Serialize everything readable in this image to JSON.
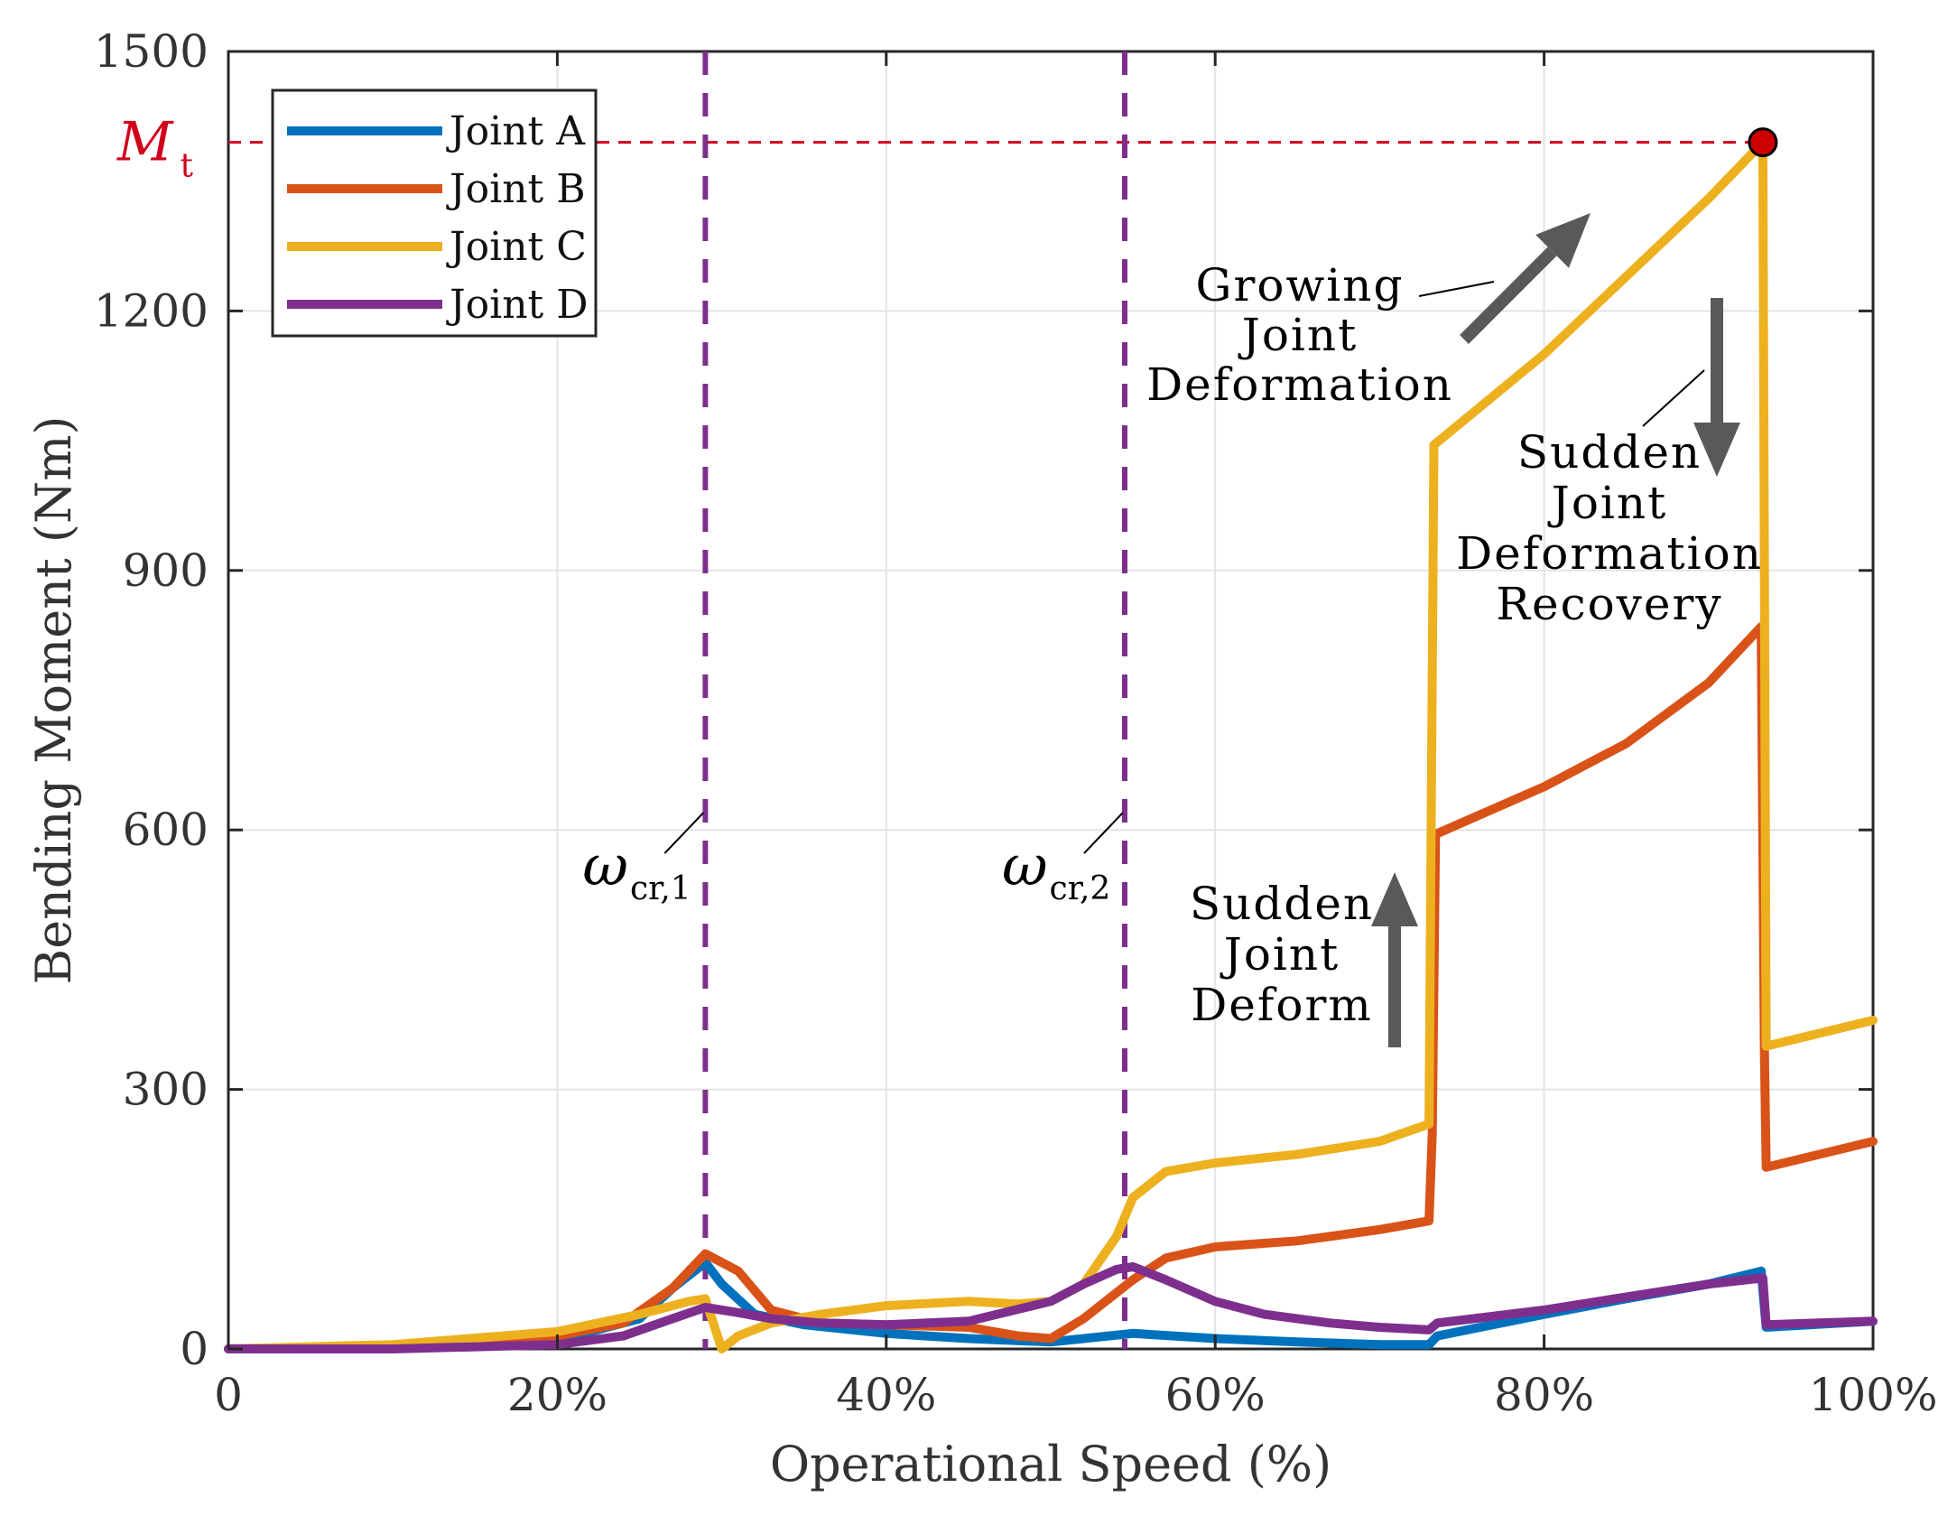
{
  "chart_data": {
    "type": "line",
    "title": "",
    "xlabel": "Operational Speed (%)",
    "ylabel": "Bending Moment (Nm)",
    "xlim": [
      0,
      100
    ],
    "ylim": [
      0,
      1500
    ],
    "grid": true,
    "legend_position": "top-left",
    "x_ticks": [
      0,
      20,
      40,
      60,
      80,
      100
    ],
    "x_tick_labels": [
      "0",
      "20%",
      "40%",
      "60%",
      "80%",
      "100%"
    ],
    "y_ticks": [
      0,
      300,
      600,
      900,
      1200,
      1500
    ],
    "y_tick_labels": [
      "0",
      "300",
      "600",
      "900",
      "1200",
      "1500"
    ],
    "series": [
      {
        "name": "Joint A",
        "color": "#0072BD",
        "points": [
          [
            0,
            0
          ],
          [
            10,
            2
          ],
          [
            20,
            10
          ],
          [
            25,
            35
          ],
          [
            27,
            70
          ],
          [
            29,
            100
          ],
          [
            30,
            75
          ],
          [
            32,
            40
          ],
          [
            35,
            28
          ],
          [
            40,
            18
          ],
          [
            45,
            12
          ],
          [
            50,
            8
          ],
          [
            52,
            12
          ],
          [
            55,
            18
          ],
          [
            60,
            12
          ],
          [
            65,
            8
          ],
          [
            70,
            5
          ],
          [
            73,
            5
          ],
          [
            73.5,
            15
          ],
          [
            80,
            40
          ],
          [
            85,
            58
          ],
          [
            90,
            75
          ],
          [
            93.2,
            90
          ],
          [
            93.5,
            25
          ],
          [
            100,
            32
          ]
        ]
      },
      {
        "name": "Joint B",
        "color": "#D95319",
        "points": [
          [
            0,
            0
          ],
          [
            10,
            4
          ],
          [
            20,
            15
          ],
          [
            24,
            30
          ],
          [
            27,
            70
          ],
          [
            29,
            110
          ],
          [
            31,
            90
          ],
          [
            33,
            45
          ],
          [
            36,
            30
          ],
          [
            40,
            28
          ],
          [
            45,
            25
          ],
          [
            48,
            15
          ],
          [
            50,
            12
          ],
          [
            52,
            35
          ],
          [
            55,
            80
          ],
          [
            57,
            105
          ],
          [
            60,
            118
          ],
          [
            65,
            125
          ],
          [
            70,
            138
          ],
          [
            73,
            148
          ],
          [
            73.2,
            250
          ],
          [
            73.4,
            595
          ],
          [
            80,
            650
          ],
          [
            85,
            700
          ],
          [
            90,
            770
          ],
          [
            93.2,
            835
          ],
          [
            93.4,
            340
          ],
          [
            93.5,
            210
          ],
          [
            100,
            240
          ]
        ]
      },
      {
        "name": "Joint C",
        "color": "#EDB120",
        "points": [
          [
            0,
            0
          ],
          [
            10,
            5
          ],
          [
            20,
            20
          ],
          [
            25,
            40
          ],
          [
            28,
            55
          ],
          [
            29,
            58
          ],
          [
            30,
            0
          ],
          [
            31,
            15
          ],
          [
            33,
            30
          ],
          [
            36,
            40
          ],
          [
            40,
            50
          ],
          [
            45,
            55
          ],
          [
            48,
            52
          ],
          [
            50,
            55
          ],
          [
            52,
            75
          ],
          [
            54,
            130
          ],
          [
            55,
            175
          ],
          [
            57,
            205
          ],
          [
            60,
            215
          ],
          [
            65,
            225
          ],
          [
            70,
            240
          ],
          [
            73,
            260
          ],
          [
            73.3,
            1045
          ],
          [
            80,
            1150
          ],
          [
            85,
            1240
          ],
          [
            90,
            1330
          ],
          [
            93.3,
            1395
          ],
          [
            93.5,
            350
          ],
          [
            100,
            380
          ]
        ]
      },
      {
        "name": "Joint D",
        "color": "#7E2F8E",
        "points": [
          [
            0,
            0
          ],
          [
            10,
            0
          ],
          [
            20,
            5
          ],
          [
            24,
            15
          ],
          [
            27,
            35
          ],
          [
            29,
            48
          ],
          [
            31,
            42
          ],
          [
            33,
            35
          ],
          [
            36,
            30
          ],
          [
            40,
            28
          ],
          [
            45,
            32
          ],
          [
            50,
            55
          ],
          [
            52,
            75
          ],
          [
            54,
            92
          ],
          [
            55,
            95
          ],
          [
            57,
            80
          ],
          [
            60,
            55
          ],
          [
            63,
            40
          ],
          [
            67,
            30
          ],
          [
            70,
            25
          ],
          [
            73,
            22
          ],
          [
            73.5,
            30
          ],
          [
            80,
            45
          ],
          [
            85,
            60
          ],
          [
            90,
            75
          ],
          [
            93.3,
            82
          ],
          [
            93.5,
            28
          ],
          [
            100,
            32
          ]
        ]
      }
    ],
    "reference_lines": [
      {
        "type": "horizontal",
        "y": 1395,
        "label_main": "M",
        "label_sub": "t",
        "color": "#D0021B"
      },
      {
        "type": "vertical",
        "x": 29,
        "label_main": "ω",
        "label_sub": "cr,1",
        "color": "#7E2F8E"
      },
      {
        "type": "vertical",
        "x": 54.5,
        "label_main": "ω",
        "label_sub": "cr,2",
        "color": "#7E2F8E"
      }
    ],
    "marker": {
      "x": 93.3,
      "y": 1395,
      "color": "#CC0000"
    },
    "annotations": [
      {
        "lines": [
          "Growing",
          "Joint",
          "Deformation"
        ]
      },
      {
        "lines": [
          "Sudden",
          "Joint",
          "Deformation",
          "Recovery"
        ]
      },
      {
        "lines": [
          "Sudden",
          "Joint",
          "Deform"
        ]
      }
    ]
  }
}
